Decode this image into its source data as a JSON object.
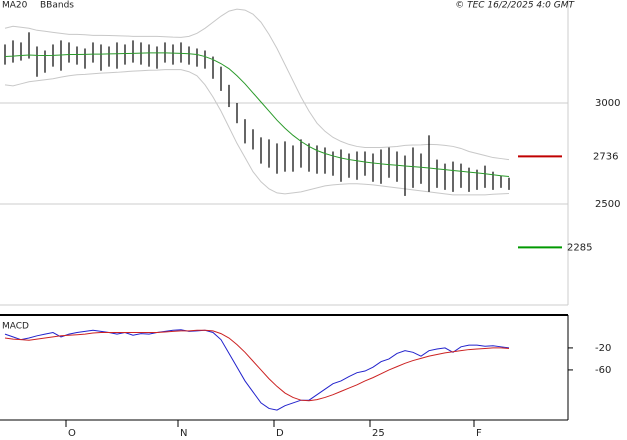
{
  "chart_data": [
    {
      "type": "ohlc",
      "credit": "© TEC 16/2/2025 4:0 GMT",
      "high": [
        3290,
        3310,
        3300,
        3350,
        3280,
        3260,
        3290,
        3310,
        3300,
        3280,
        3270,
        3300,
        3290,
        3280,
        3300,
        3290,
        3310,
        3300,
        3290,
        3280,
        3300,
        3290,
        3300,
        3280,
        3270,
        3260,
        3230,
        3180,
        3090,
        3000,
        2920,
        2870,
        2830,
        2820,
        2800,
        2810,
        2790,
        2820,
        2800,
        2790,
        2780,
        2760,
        2770,
        2750,
        2760,
        2760,
        2750,
        2770,
        2780,
        2760,
        2740,
        2780,
        2750,
        2840,
        2720,
        2700,
        2710,
        2700,
        2680,
        2670,
        2690,
        2660,
        2640,
        2630
      ],
      "low": [
        3190,
        3200,
        3210,
        3220,
        3130,
        3150,
        3180,
        3160,
        3200,
        3190,
        3170,
        3200,
        3160,
        3180,
        3170,
        3190,
        3200,
        3190,
        3180,
        3170,
        3200,
        3190,
        3200,
        3190,
        3180,
        3170,
        3120,
        3060,
        2980,
        2900,
        2800,
        2770,
        2700,
        2680,
        2650,
        2660,
        2660,
        2680,
        2660,
        2650,
        2650,
        2640,
        2610,
        2630,
        2620,
        2640,
        2610,
        2600,
        2630,
        2610,
        2540,
        2580,
        2600,
        2560,
        2580,
        2570,
        2560,
        2580,
        2560,
        2570,
        2580,
        2570,
        2580,
        2570
      ],
      "bar_color": "#000000",
      "series": [
        {
          "name": "MA20",
          "color": "#2a9a2a",
          "values": [
            3230,
            3232,
            3235,
            3238,
            3236,
            3235,
            3236,
            3238,
            3240,
            3240,
            3241,
            3242,
            3242,
            3243,
            3244,
            3245,
            3246,
            3247,
            3248,
            3248,
            3248,
            3247,
            3246,
            3244,
            3240,
            3230,
            3215,
            3195,
            3170,
            3135,
            3095,
            3050,
            3005,
            2960,
            2915,
            2875,
            2840,
            2810,
            2785,
            2765,
            2750,
            2738,
            2728,
            2720,
            2714,
            2708,
            2703,
            2699,
            2695,
            2692,
            2688,
            2685,
            2682,
            2678,
            2674,
            2670,
            2666,
            2662,
            2658,
            2654,
            2650,
            2645,
            2640,
            2636
          ]
        },
        {
          "name": "BBands",
          "color": "#c8c8c8",
          "upper": [
            3370,
            3380,
            3375,
            3370,
            3360,
            3355,
            3350,
            3345,
            3340,
            3340,
            3338,
            3335,
            3335,
            3334,
            3333,
            3332,
            3330,
            3330,
            3330,
            3330,
            3328,
            3326,
            3325,
            3330,
            3345,
            3370,
            3400,
            3430,
            3455,
            3465,
            3460,
            3440,
            3400,
            3340,
            3270,
            3190,
            3110,
            3030,
            2960,
            2900,
            2860,
            2830,
            2810,
            2795,
            2785,
            2780,
            2780,
            2780,
            2782,
            2785,
            2790,
            2792,
            2793,
            2795,
            2794,
            2790,
            2785,
            2775,
            2760,
            2750,
            2740,
            2730,
            2725,
            2720
          ],
          "lower": [
            3090,
            3085,
            3095,
            3105,
            3110,
            3115,
            3120,
            3128,
            3135,
            3140,
            3142,
            3145,
            3148,
            3150,
            3152,
            3155,
            3158,
            3160,
            3162,
            3163,
            3165,
            3165,
            3165,
            3155,
            3135,
            3090,
            3030,
            2960,
            2880,
            2800,
            2730,
            2660,
            2610,
            2575,
            2555,
            2550,
            2555,
            2560,
            2570,
            2580,
            2590,
            2595,
            2598,
            2600,
            2600,
            2598,
            2595,
            2590,
            2585,
            2580,
            2575,
            2570,
            2565,
            2560,
            2555,
            2550,
            2545,
            2545,
            2545,
            2545,
            2545,
            2548,
            2550,
            2552
          ]
        }
      ],
      "levels": [
        {
          "value": 2736,
          "color": "#c00000"
        },
        {
          "value": 2285,
          "color": "#009900"
        }
      ],
      "ylim": [
        2000,
        3510
      ],
      "yticks": [
        3000,
        2500
      ],
      "grid": true
    },
    {
      "type": "line",
      "title": "MACD",
      "categories": [
        null,
        null,
        null,
        null,
        null,
        null,
        null,
        null,
        "O",
        null,
        null,
        null,
        null,
        null,
        null,
        null,
        null,
        null,
        null,
        null,
        null,
        null,
        "N",
        null,
        null,
        null,
        null,
        null,
        null,
        null,
        null,
        null,
        null,
        null,
        "D",
        null,
        null,
        null,
        null,
        null,
        null,
        null,
        null,
        null,
        null,
        null,
        "25",
        null,
        null,
        null,
        null,
        null,
        null,
        null,
        null,
        null,
        null,
        null,
        null,
        "F",
        null,
        null,
        null,
        null
      ],
      "series": [
        {
          "color": "#2222cc",
          "values": [
            5,
            0,
            -5,
            -2,
            2,
            5,
            8,
            0,
            5,
            8,
            10,
            12,
            10,
            8,
            5,
            8,
            3,
            6,
            5,
            8,
            10,
            12,
            13,
            10,
            11,
            12,
            8,
            -5,
            -30,
            -55,
            -80,
            -100,
            -120,
            -130,
            -133,
            -125,
            -120,
            -115,
            -115,
            -105,
            -95,
            -85,
            -80,
            -72,
            -65,
            -62,
            -55,
            -45,
            -40,
            -30,
            -25,
            -28,
            -35,
            -25,
            -22,
            -20,
            -28,
            -18,
            -15,
            -15,
            -17,
            -16,
            -18,
            -20
          ]
        },
        {
          "color": "#cc2222",
          "values": [
            -2,
            -4,
            -5,
            -6,
            -4,
            -2,
            0,
            2,
            3,
            4,
            5,
            7,
            8,
            8,
            8,
            8,
            8,
            8,
            8,
            8,
            9,
            10,
            11,
            11,
            12,
            12,
            11,
            6,
            -2,
            -14,
            -28,
            -44,
            -60,
            -76,
            -90,
            -102,
            -110,
            -115,
            -116,
            -114,
            -110,
            -105,
            -99,
            -93,
            -87,
            -80,
            -74,
            -67,
            -60,
            -54,
            -48,
            -43,
            -39,
            -35,
            -32,
            -29,
            -27,
            -25,
            -23,
            -22,
            -21,
            -20,
            -20,
            -21
          ]
        }
      ],
      "ylim": [
        -151,
        38
      ],
      "yticks": [
        -20,
        -60
      ]
    }
  ]
}
